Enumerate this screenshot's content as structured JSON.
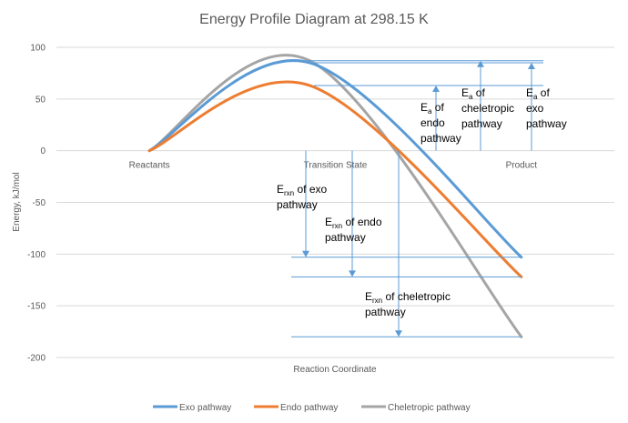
{
  "chart_data": {
    "type": "line",
    "title": "Energy Profile Diagram at 298.15 K",
    "xlabel": "Reaction Coordinate",
    "ylabel": "Energy, kJ/mol",
    "categories": [
      "Reactants",
      "Transition State",
      "Product"
    ],
    "ylim": [
      -200,
      100
    ],
    "yticks": [
      100,
      50,
      0,
      -50,
      -100,
      -150,
      -200
    ],
    "grid": true,
    "smoothed": true,
    "legend_position": "bottom",
    "series": [
      {
        "name": "Exo pathway",
        "color": "#5B9BD5",
        "values": [
          0,
          85,
          -103
        ]
      },
      {
        "name": "Endo pathway",
        "color": "#ED7D31",
        "values": [
          0,
          63,
          -122
        ]
      },
      {
        "name": "Cheletropic pathway",
        "color": "#A5A5A5",
        "values": [
          0,
          87,
          -180
        ]
      }
    ],
    "annotation_color": "#5B9BD5",
    "annotations": {
      "activation_energy": [
        {
          "label_prefix": "E",
          "label_sub": "a",
          "label_rest": " of",
          "lines": [
            "endo",
            "pathway"
          ],
          "value": 63
        },
        {
          "label_prefix": "E",
          "label_sub": "a",
          "label_rest": " of",
          "lines": [
            "cheletropic",
            "pathway"
          ],
          "value": 87
        },
        {
          "label_prefix": "E",
          "label_sub": "a",
          "label_rest": " of",
          "lines": [
            "exo",
            "pathway"
          ],
          "value": 85
        }
      ],
      "reaction_energy": [
        {
          "label_prefix": "E",
          "label_sub": "rxn",
          "label_rest": " of exo",
          "lines": [
            "pathway"
          ],
          "value": -103
        },
        {
          "label_prefix": "E",
          "label_sub": "rxn",
          "label_rest": " of endo",
          "lines": [
            "pathway"
          ],
          "value": -122
        },
        {
          "label_prefix": "E",
          "label_sub": "rxn",
          "label_rest": " of cheletropic",
          "lines": [
            "pathway"
          ],
          "value": -180
        }
      ]
    }
  }
}
